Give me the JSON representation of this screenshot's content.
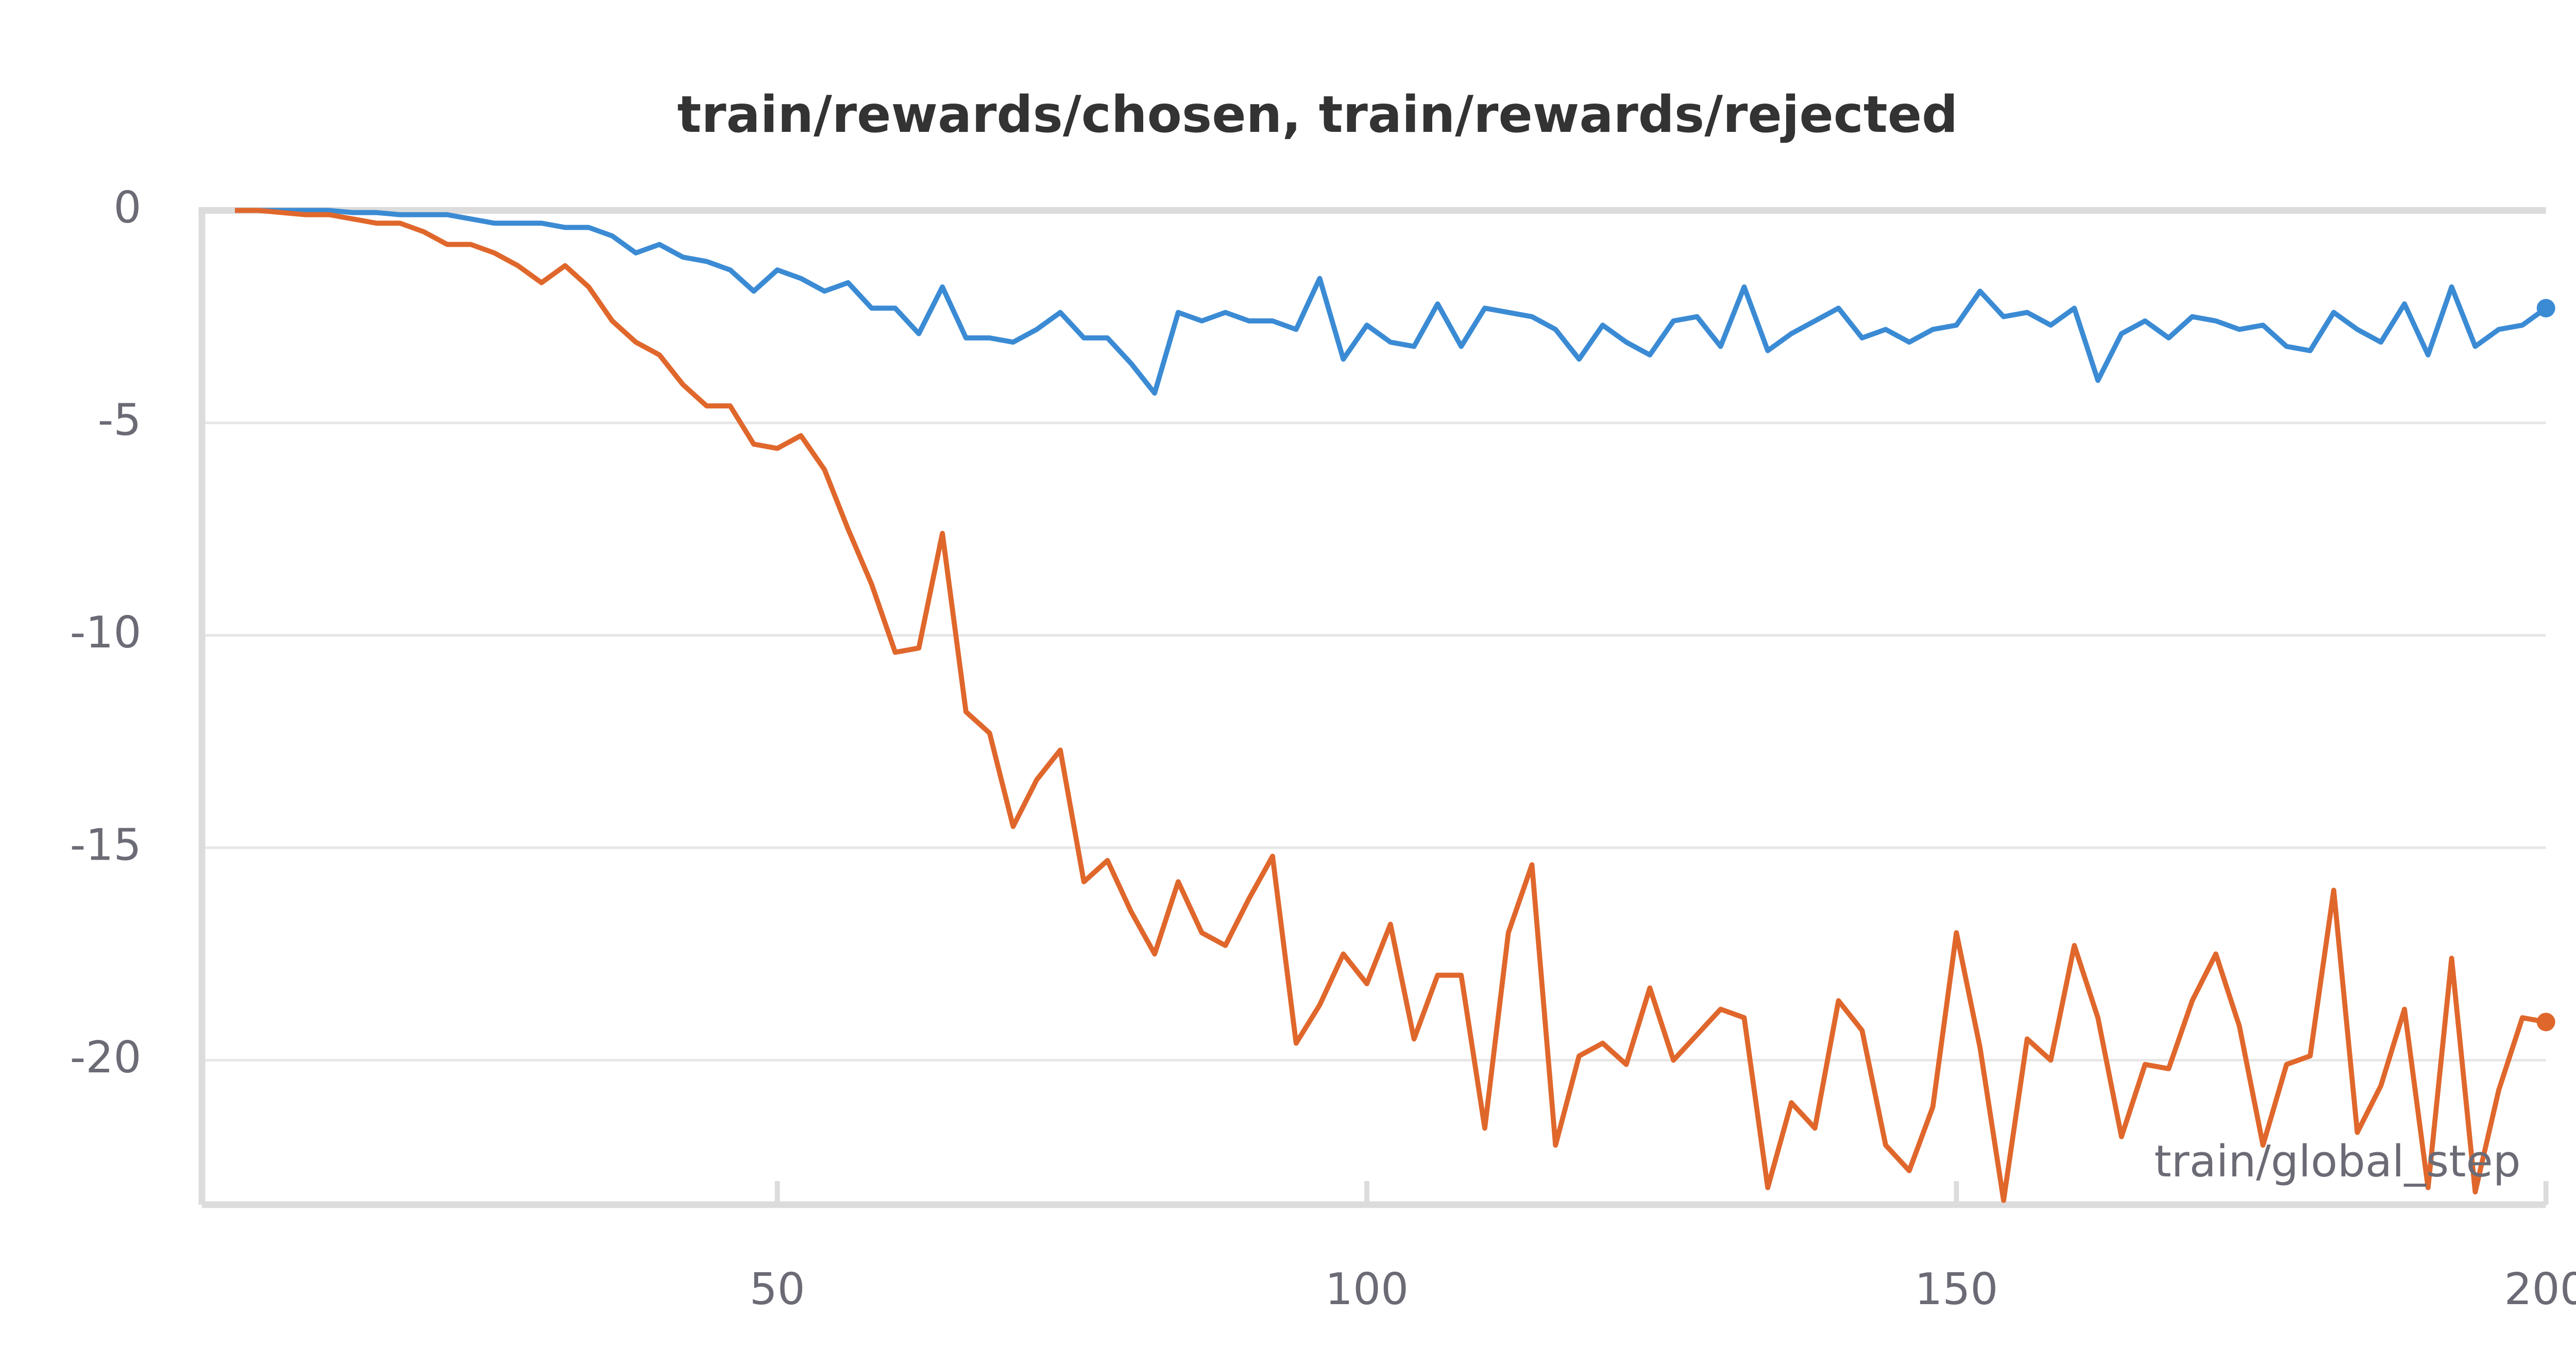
{
  "chart_data": {
    "type": "line",
    "title": "train/rewards/chosen, train/rewards/rejected",
    "x_label": "train/global_step",
    "x": [
      4,
      6,
      8,
      10,
      12,
      14,
      16,
      18,
      20,
      22,
      24,
      26,
      28,
      30,
      32,
      34,
      36,
      38,
      40,
      42,
      44,
      46,
      48,
      50,
      52,
      54,
      56,
      58,
      60,
      62,
      64,
      66,
      68,
      70,
      72,
      74,
      76,
      78,
      80,
      82,
      84,
      86,
      88,
      90,
      92,
      94,
      96,
      98,
      100,
      102,
      104,
      106,
      108,
      110,
      112,
      114,
      116,
      118,
      120,
      122,
      124,
      126,
      128,
      130,
      132,
      134,
      136,
      138,
      140,
      142,
      144,
      146,
      148,
      150,
      152,
      154,
      156,
      158,
      160,
      162,
      164,
      166,
      168,
      170,
      172,
      174,
      176,
      178,
      180,
      182,
      184,
      186,
      188,
      190,
      192,
      194,
      196,
      198,
      200
    ],
    "series": [
      {
        "name": "train/rewards/chosen",
        "color": "#3b8bd4",
        "values": [
          0,
          0,
          0,
          0,
          0,
          -0.05,
          -0.05,
          -0.1,
          -0.1,
          -0.1,
          -0.2,
          -0.3,
          -0.3,
          -0.3,
          -0.4,
          -0.4,
          -0.6,
          -1.0,
          -0.8,
          -1.1,
          -1.2,
          -1.4,
          -1.9,
          -1.4,
          -1.6,
          -1.9,
          -1.7,
          -2.3,
          -2.3,
          -2.9,
          -1.8,
          -3.0,
          -3.0,
          -3.1,
          -2.8,
          -2.4,
          -3.0,
          -3.0,
          -3.6,
          -4.3,
          -2.4,
          -2.6,
          -2.4,
          -2.6,
          -2.6,
          -2.8,
          -1.6,
          -3.5,
          -2.7,
          -3.1,
          -3.2,
          -2.2,
          -3.2,
          -2.3,
          -2.4,
          -2.5,
          -2.8,
          -3.5,
          -2.7,
          -3.1,
          -3.4,
          -2.6,
          -2.5,
          -3.2,
          -1.8,
          -3.3,
          -2.9,
          -2.6,
          -2.3,
          -3.0,
          -2.8,
          -3.1,
          -2.8,
          -2.7,
          -1.9,
          -2.5,
          -2.4,
          -2.7,
          -2.3,
          -4.0,
          -2.9,
          -2.6,
          -3.0,
          -2.5,
          -2.6,
          -2.8,
          -2.7,
          -3.2,
          -3.3,
          -2.4,
          -2.8,
          -3.1,
          -2.2,
          -3.4,
          -1.8,
          -3.2,
          -2.8,
          -2.7,
          -2.3
        ]
      },
      {
        "name": "train/rewards/rejected",
        "color": "#e0672c",
        "values": [
          0,
          0,
          -0.05,
          -0.1,
          -0.1,
          -0.2,
          -0.3,
          -0.3,
          -0.5,
          -0.8,
          -0.8,
          -1.0,
          -1.3,
          -1.7,
          -1.3,
          -1.8,
          -2.6,
          -3.1,
          -3.4,
          -4.1,
          -4.6,
          -4.6,
          -5.5,
          -5.6,
          -5.3,
          -6.1,
          -7.5,
          -8.8,
          -10.4,
          -10.3,
          -7.6,
          -11.8,
          -12.3,
          -14.5,
          -13.4,
          -12.7,
          -15.8,
          -15.3,
          -16.5,
          -17.5,
          -15.8,
          -17.0,
          -17.3,
          -16.2,
          -15.2,
          -19.6,
          -18.7,
          -17.5,
          -18.2,
          -16.8,
          -19.5,
          -18.0,
          -18.0,
          -21.6,
          -17.0,
          -15.4,
          -22.0,
          -19.9,
          -19.6,
          -20.1,
          -18.3,
          -20.0,
          -19.4,
          -18.8,
          -19.0,
          -23.0,
          -21.0,
          -21.6,
          -18.6,
          -19.3,
          -22.0,
          -22.6,
          -21.1,
          -17.0,
          -19.7,
          -23.3,
          -19.5,
          -20.0,
          -17.3,
          -19.0,
          -21.8,
          -20.1,
          -20.2,
          -18.6,
          -17.5,
          -19.2,
          -22.0,
          -20.1,
          -19.9,
          -16.0,
          -21.7,
          -20.6,
          -18.8,
          -23.0,
          -17.6,
          -23.1,
          -20.7,
          -19.0,
          -19.1
        ]
      }
    ],
    "xlim": [
      1.2,
      200
    ],
    "xticks": [
      50,
      100,
      150,
      200
    ],
    "ylim": [
      -23.4,
      0
    ],
    "yticks": [
      0,
      -5,
      -10,
      -15,
      -20
    ],
    "grid": true
  }
}
